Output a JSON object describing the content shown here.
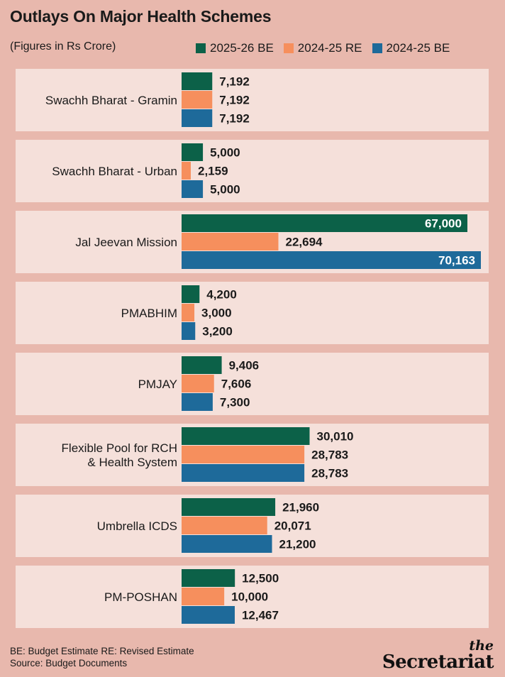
{
  "title": "Outlays On Major Health Schemes",
  "subtitle": "(Figures in Rs Crore)",
  "footer": {
    "note1": "BE: Budget Estimate  RE: Revised Estimate",
    "note2": "Source: Budget Documents"
  },
  "brand": {
    "the": "the",
    "name": "Secretariat"
  },
  "colors": {
    "background": "#e8b8ad",
    "panel": "#f5e0da",
    "series_2025_26_BE": "#0c6148",
    "series_2024_25_RE": "#f68f5d",
    "series_2024_25_BE": "#1e6a9a"
  },
  "chart_data": {
    "type": "bar",
    "orientation": "horizontal",
    "categories": [
      "Swachh Bharat - Gramin",
      "Swachh Bharat - Urban",
      "Jal Jeevan Mission",
      "PMABHIM",
      "PMJAY",
      "Flexible Pool for RCH & Health System",
      "Umbrella ICDS",
      "PM-POSHAN"
    ],
    "series": [
      {
        "name": "2025-26 BE",
        "color": "#0c6148",
        "values": [
          7192,
          5000,
          67000,
          4200,
          9406,
          30010,
          21960,
          12500
        ],
        "labels": [
          "7,192",
          "5,000",
          "67,000",
          "4,200",
          "9,406",
          "30,010",
          "21,960",
          "12,500"
        ]
      },
      {
        "name": "2024-25 RE",
        "color": "#f68f5d",
        "values": [
          7192,
          2159,
          22694,
          3000,
          7606,
          28783,
          20071,
          10000
        ],
        "labels": [
          "7,192",
          "2,159",
          "22,694",
          "3,000",
          "7,606",
          "28,783",
          "20,071",
          "10,000"
        ]
      },
      {
        "name": "2024-25 BE",
        "color": "#1e6a9a",
        "values": [
          7192,
          5000,
          70163,
          3200,
          7300,
          28783,
          21200,
          12467
        ],
        "labels": [
          "7,192",
          "5,000",
          "70,163",
          "3,200",
          "7,300",
          "28,783",
          "21,200",
          "12,467"
        ]
      }
    ],
    "xlim": [
      0,
      70163
    ],
    "legend": "top",
    "grid": false
  }
}
